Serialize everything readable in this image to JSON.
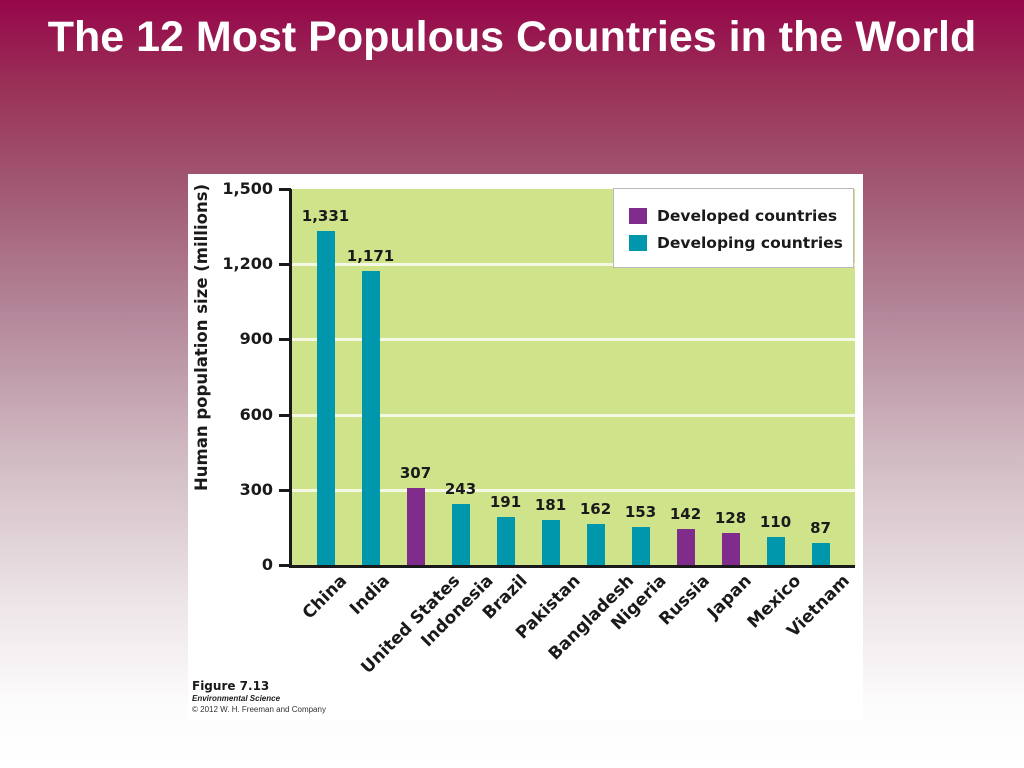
{
  "slide": {
    "title": "The 12 Most Populous Countries in the World"
  },
  "figure": {
    "caption": {
      "figure_number": "Figure 7.13",
      "book": "Environmental Science",
      "copyright": "© 2012 W. H. Freeman and Company"
    }
  },
  "legend": {
    "items": [
      {
        "label": "Developed countries",
        "color": "#7f2c8c"
      },
      {
        "label": "Developing countries",
        "color": "#0097ad"
      }
    ]
  },
  "colors": {
    "developed": "#7f2c8c",
    "developing": "#0097ad",
    "plot_background": "#cfe38a",
    "gridline": "#f4f8e4"
  },
  "chart_data": {
    "type": "bar",
    "title": "The 12 Most Populous Countries in the World",
    "xlabel": "",
    "ylabel": "Human population size (millions)",
    "ylim": [
      0,
      1500
    ],
    "yticks": [
      0,
      300,
      600,
      900,
      1200,
      1500
    ],
    "ytick_labels": [
      "0",
      "300",
      "600",
      "900",
      "1,200",
      "1,500"
    ],
    "grid": true,
    "legend_position": "top-right",
    "categories": [
      "China",
      "India",
      "United States",
      "Indonesia",
      "Brazil",
      "Pakistan",
      "Bangladesh",
      "Nigeria",
      "Russia",
      "Japan",
      "Mexico",
      "Vietnam"
    ],
    "values": [
      1331,
      1171,
      307,
      243,
      191,
      181,
      162,
      153,
      142,
      128,
      110,
      87
    ],
    "value_labels": [
      "1,331",
      "1,171",
      "307",
      "243",
      "191",
      "181",
      "162",
      "153",
      "142",
      "128",
      "110",
      "87"
    ],
    "groups": [
      "Developing",
      "Developing",
      "Developed",
      "Developing",
      "Developing",
      "Developing",
      "Developing",
      "Developing",
      "Developed",
      "Developed",
      "Developing",
      "Developing"
    ],
    "series": [
      {
        "name": "Developed countries",
        "values": [
          null,
          null,
          307,
          null,
          null,
          null,
          null,
          null,
          142,
          128,
          null,
          null
        ]
      },
      {
        "name": "Developing countries",
        "values": [
          1331,
          1171,
          null,
          243,
          191,
          181,
          162,
          153,
          null,
          null,
          110,
          87
        ]
      }
    ]
  }
}
